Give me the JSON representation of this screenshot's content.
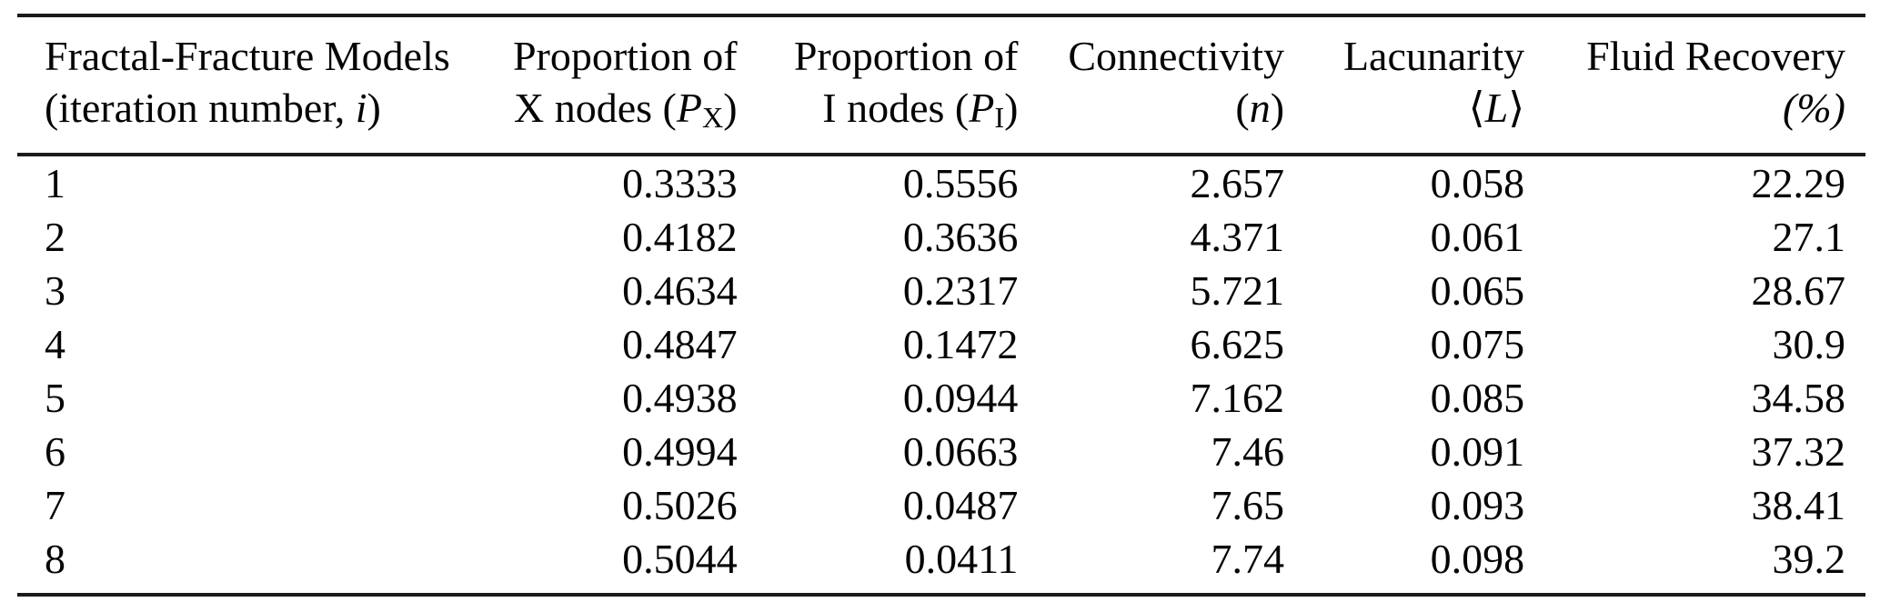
{
  "page": {
    "background": "#ffffff",
    "text_color": "#050505",
    "rule_color": "#1b1b1b"
  },
  "table": {
    "columns": [
      {
        "id": "models",
        "align": "left",
        "width_pct": 26.6,
        "line1": [
          {
            "t": "Fractal-Fracture Models",
            "s": "normal"
          }
        ],
        "line2": [
          {
            "t": "(iteration number, ",
            "s": "normal"
          },
          {
            "t": "i",
            "s": "italic"
          },
          {
            "t": ")",
            "s": "normal"
          }
        ]
      },
      {
        "id": "proportion-x-nodes",
        "align": "right",
        "width_pct": 12.7,
        "line1": [
          {
            "t": "Proportion of",
            "s": "normal"
          }
        ],
        "line2": [
          {
            "t": "X nodes (",
            "s": "normal"
          },
          {
            "t": "P",
            "s": "italic"
          },
          {
            "t": "X",
            "s": "sub"
          },
          {
            "t": ")",
            "s": "normal"
          }
        ]
      },
      {
        "id": "proportion-i-nodes",
        "align": "right",
        "width_pct": 15.2,
        "line1": [
          {
            "t": "Proportion of",
            "s": "normal"
          }
        ],
        "line2": [
          {
            "t": "I nodes (",
            "s": "normal"
          },
          {
            "t": "P",
            "s": "italic"
          },
          {
            "t": "I",
            "s": "sub"
          },
          {
            "t": ")",
            "s": "normal"
          }
        ]
      },
      {
        "id": "connectivity",
        "align": "right",
        "width_pct": 14.4,
        "line1": [
          {
            "t": "Connectivity",
            "s": "normal"
          }
        ],
        "line2": [
          {
            "t": "(",
            "s": "normal"
          },
          {
            "t": "n",
            "s": "italic"
          },
          {
            "t": ")",
            "s": "normal"
          }
        ]
      },
      {
        "id": "lacunarity",
        "align": "right",
        "width_pct": 13.0,
        "line1": [
          {
            "t": "Lacunarity",
            "s": "normal"
          }
        ],
        "line2": [
          {
            "t": "⟨",
            "s": "normal"
          },
          {
            "t": "L",
            "s": "italic"
          },
          {
            "t": "⟩",
            "s": "normal"
          }
        ]
      },
      {
        "id": "fluid-recovery",
        "align": "right",
        "width_pct": 18.1,
        "line1": [
          {
            "t": "Fluid Recovery",
            "s": "normal"
          }
        ],
        "line2": [
          {
            "t": "(%)",
            "s": "italic"
          }
        ]
      }
    ],
    "rows": [
      [
        "1",
        "0.3333",
        "0.5556",
        "2.657",
        "0.058",
        "22.29"
      ],
      [
        "2",
        "0.4182",
        "0.3636",
        "4.371",
        "0.061",
        "27.1"
      ],
      [
        "3",
        "0.4634",
        "0.2317",
        "5.721",
        "0.065",
        "28.67"
      ],
      [
        "4",
        "0.4847",
        "0.1472",
        "6.625",
        "0.075",
        "30.9"
      ],
      [
        "5",
        "0.4938",
        "0.0944",
        "7.162",
        "0.085",
        "34.58"
      ],
      [
        "6",
        "0.4994",
        "0.0663",
        "7.46",
        "0.091",
        "37.32"
      ],
      [
        "7",
        "0.5026",
        "0.0487",
        "7.65",
        "0.093",
        "38.41"
      ],
      [
        "8",
        "0.5044",
        "0.0411",
        "7.74",
        "0.098",
        "39.2"
      ]
    ]
  },
  "chart_data": {
    "type": "table",
    "title": "",
    "column_headers": [
      "Fractal-Fracture Models (iteration number, i)",
      "Proportion of X nodes (P_X)",
      "Proportion of I nodes (P_I)",
      "Connectivity (n)",
      "Lacunarity ⟨L⟩",
      "Fluid Recovery (%)"
    ],
    "rows": [
      [
        1,
        0.3333,
        0.5556,
        2.657,
        0.058,
        22.29
      ],
      [
        2,
        0.4182,
        0.3636,
        4.371,
        0.061,
        27.1
      ],
      [
        3,
        0.4634,
        0.2317,
        5.721,
        0.065,
        28.67
      ],
      [
        4,
        0.4847,
        0.1472,
        6.625,
        0.075,
        30.9
      ],
      [
        5,
        0.4938,
        0.0944,
        7.162,
        0.085,
        34.58
      ],
      [
        6,
        0.4994,
        0.0663,
        7.46,
        0.091,
        37.32
      ],
      [
        7,
        0.5026,
        0.0487,
        7.65,
        0.093,
        38.41
      ],
      [
        8,
        0.5044,
        0.0411,
        7.74,
        0.098,
        39.2
      ]
    ]
  }
}
